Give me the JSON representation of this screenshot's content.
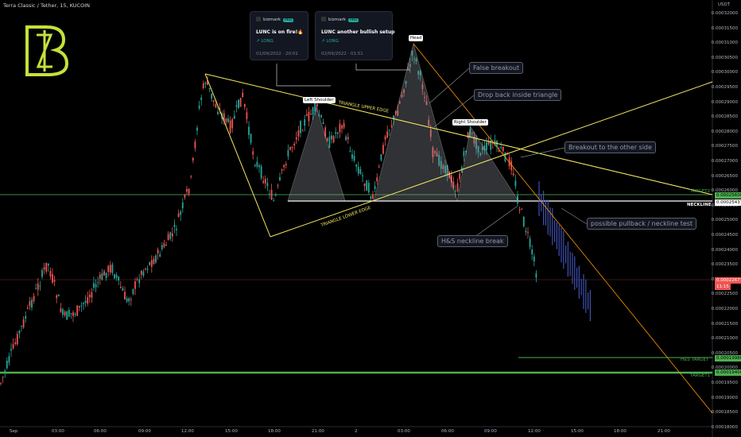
{
  "header": {
    "symbol": "Terra Classic / Tether, 15, KUCOIN"
  },
  "price_axis": {
    "currency": "USDT",
    "ticks": [
      "0.00032000",
      "0.00031500",
      "0.00031000",
      "0.00030500",
      "0.00030000",
      "0.00029500",
      "0.00029000",
      "0.00028500",
      "0.00028000",
      "0.00027500",
      "0.00027000",
      "0.00026500",
      "0.00026000",
      "0.00025500",
      "0.00025000",
      "0.00024500",
      "0.00024000",
      "0.00023500",
      "0.00023000",
      "0.00022500",
      "0.00022000",
      "0.00021500",
      "0.00021000",
      "0.00020500",
      "0.00020000",
      "0.00019500",
      "0.00019000",
      "0.00018500",
      "0.00018000"
    ],
    "current_price": "0.00022677",
    "countdown": "11:15",
    "neckline_value": "0.00025437",
    "target2_value": "0.00025600",
    "hs_target_value": "0.00019980",
    "target1_value": "0.00019400"
  },
  "time_axis": {
    "ticks": [
      "Sep",
      "03:00",
      "06:00",
      "09:00",
      "12:00",
      "15:00",
      "18:00",
      "21:00",
      "2",
      "03:00",
      "06:00",
      "09:00",
      "12:00",
      "15:00",
      "18:00",
      "21:00"
    ]
  },
  "ideas": [
    {
      "user": "bizmark",
      "badge": "PRO",
      "title": "LUNC is on fire!🔥",
      "direction": "↗ LONG",
      "date": "01/09/2022 · 20:01"
    },
    {
      "user": "bizmark",
      "badge": "PRO",
      "title": "LUNC another bullish setup",
      "direction": "↗ LONG",
      "date": "02/09/2022 · 01:51"
    }
  ],
  "annotations": {
    "false_breakout": "False breakout",
    "drop_back": "Drop back inside triangle",
    "breakout_other": "Breakout to the other side",
    "pullback": "possible pullback / neckline test",
    "hs_break": "H&S neckline break",
    "left_shoulder": "Left Shoulder",
    "head": "Head",
    "right_shoulder": "Right Shoulder",
    "upper_edge": "TRIANGLE UPPER EDGE",
    "lower_edge": "TRIANGLE LOWER EDGE",
    "neckline": "NECKLINE",
    "target2": "TARGET2",
    "hs_target": "H&S TARGET",
    "target1": "TARGET1"
  },
  "colors": {
    "up": "#26a69a",
    "down": "#ef5350",
    "triangle": "#f5e663",
    "target": "#4caf50",
    "projection": "#3f51b5",
    "logo": "#c6e03a"
  }
}
